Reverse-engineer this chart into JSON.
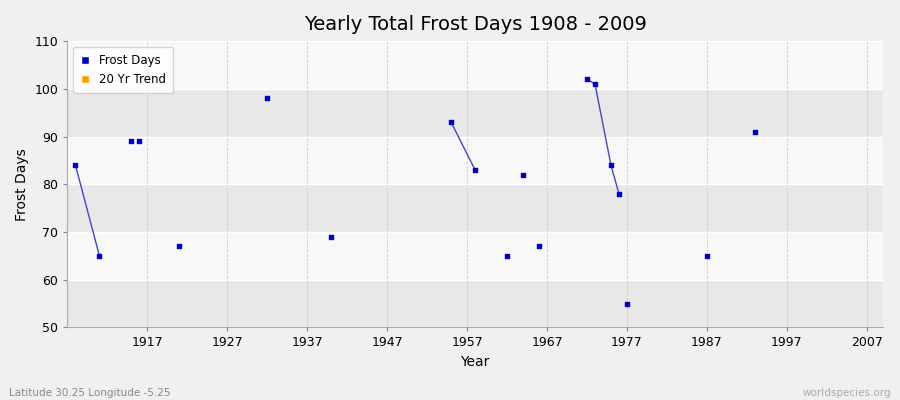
{
  "title": "Yearly Total Frost Days 1908 - 2009",
  "xlabel": "Year",
  "ylabel": "Frost Days",
  "xlim": [
    1907,
    2009
  ],
  "ylim": [
    50,
    110
  ],
  "yticks": [
    50,
    60,
    70,
    80,
    90,
    100,
    110
  ],
  "xticks": [
    1917,
    1927,
    1937,
    1947,
    1957,
    1967,
    1977,
    1987,
    1997,
    2007
  ],
  "scatter_x": [
    1908,
    1911,
    1915,
    1916,
    1921,
    1932,
    1940,
    1955,
    1958,
    1962,
    1964,
    1966,
    1972,
    1973,
    1975,
    1976,
    1977,
    1987,
    1993
  ],
  "scatter_y": [
    84,
    65,
    89,
    89,
    67,
    98,
    69,
    93,
    83,
    65,
    82,
    67,
    102,
    101,
    84,
    78,
    55,
    65,
    91
  ],
  "line_segments": [
    {
      "x": [
        1908,
        1911
      ],
      "y": [
        84,
        65
      ]
    },
    {
      "x": [
        1955,
        1958
      ],
      "y": [
        93,
        83
      ]
    },
    {
      "x": [
        1972,
        1973,
        1975,
        1976
      ],
      "y": [
        102,
        101,
        84,
        78
      ]
    }
  ],
  "scatter_color": "#0000cc",
  "line_color": "#4444cc",
  "legend_dot_color": "#0000cc",
  "legend_trend_color": "#ff9900",
  "bg_color": "#f0f0f0",
  "plot_bg_color": "#f0f0f0",
  "band_color_light": "#f8f8f8",
  "band_color_dark": "#e8e8e8",
  "grid_color_h": "#ffffff",
  "grid_color_v": "#cccccc",
  "title_fontsize": 14,
  "axis_label_fontsize": 10,
  "tick_fontsize": 9,
  "footer_left": "Latitude 30.25 Longitude -5.25",
  "footer_right": "worldspecies.org"
}
